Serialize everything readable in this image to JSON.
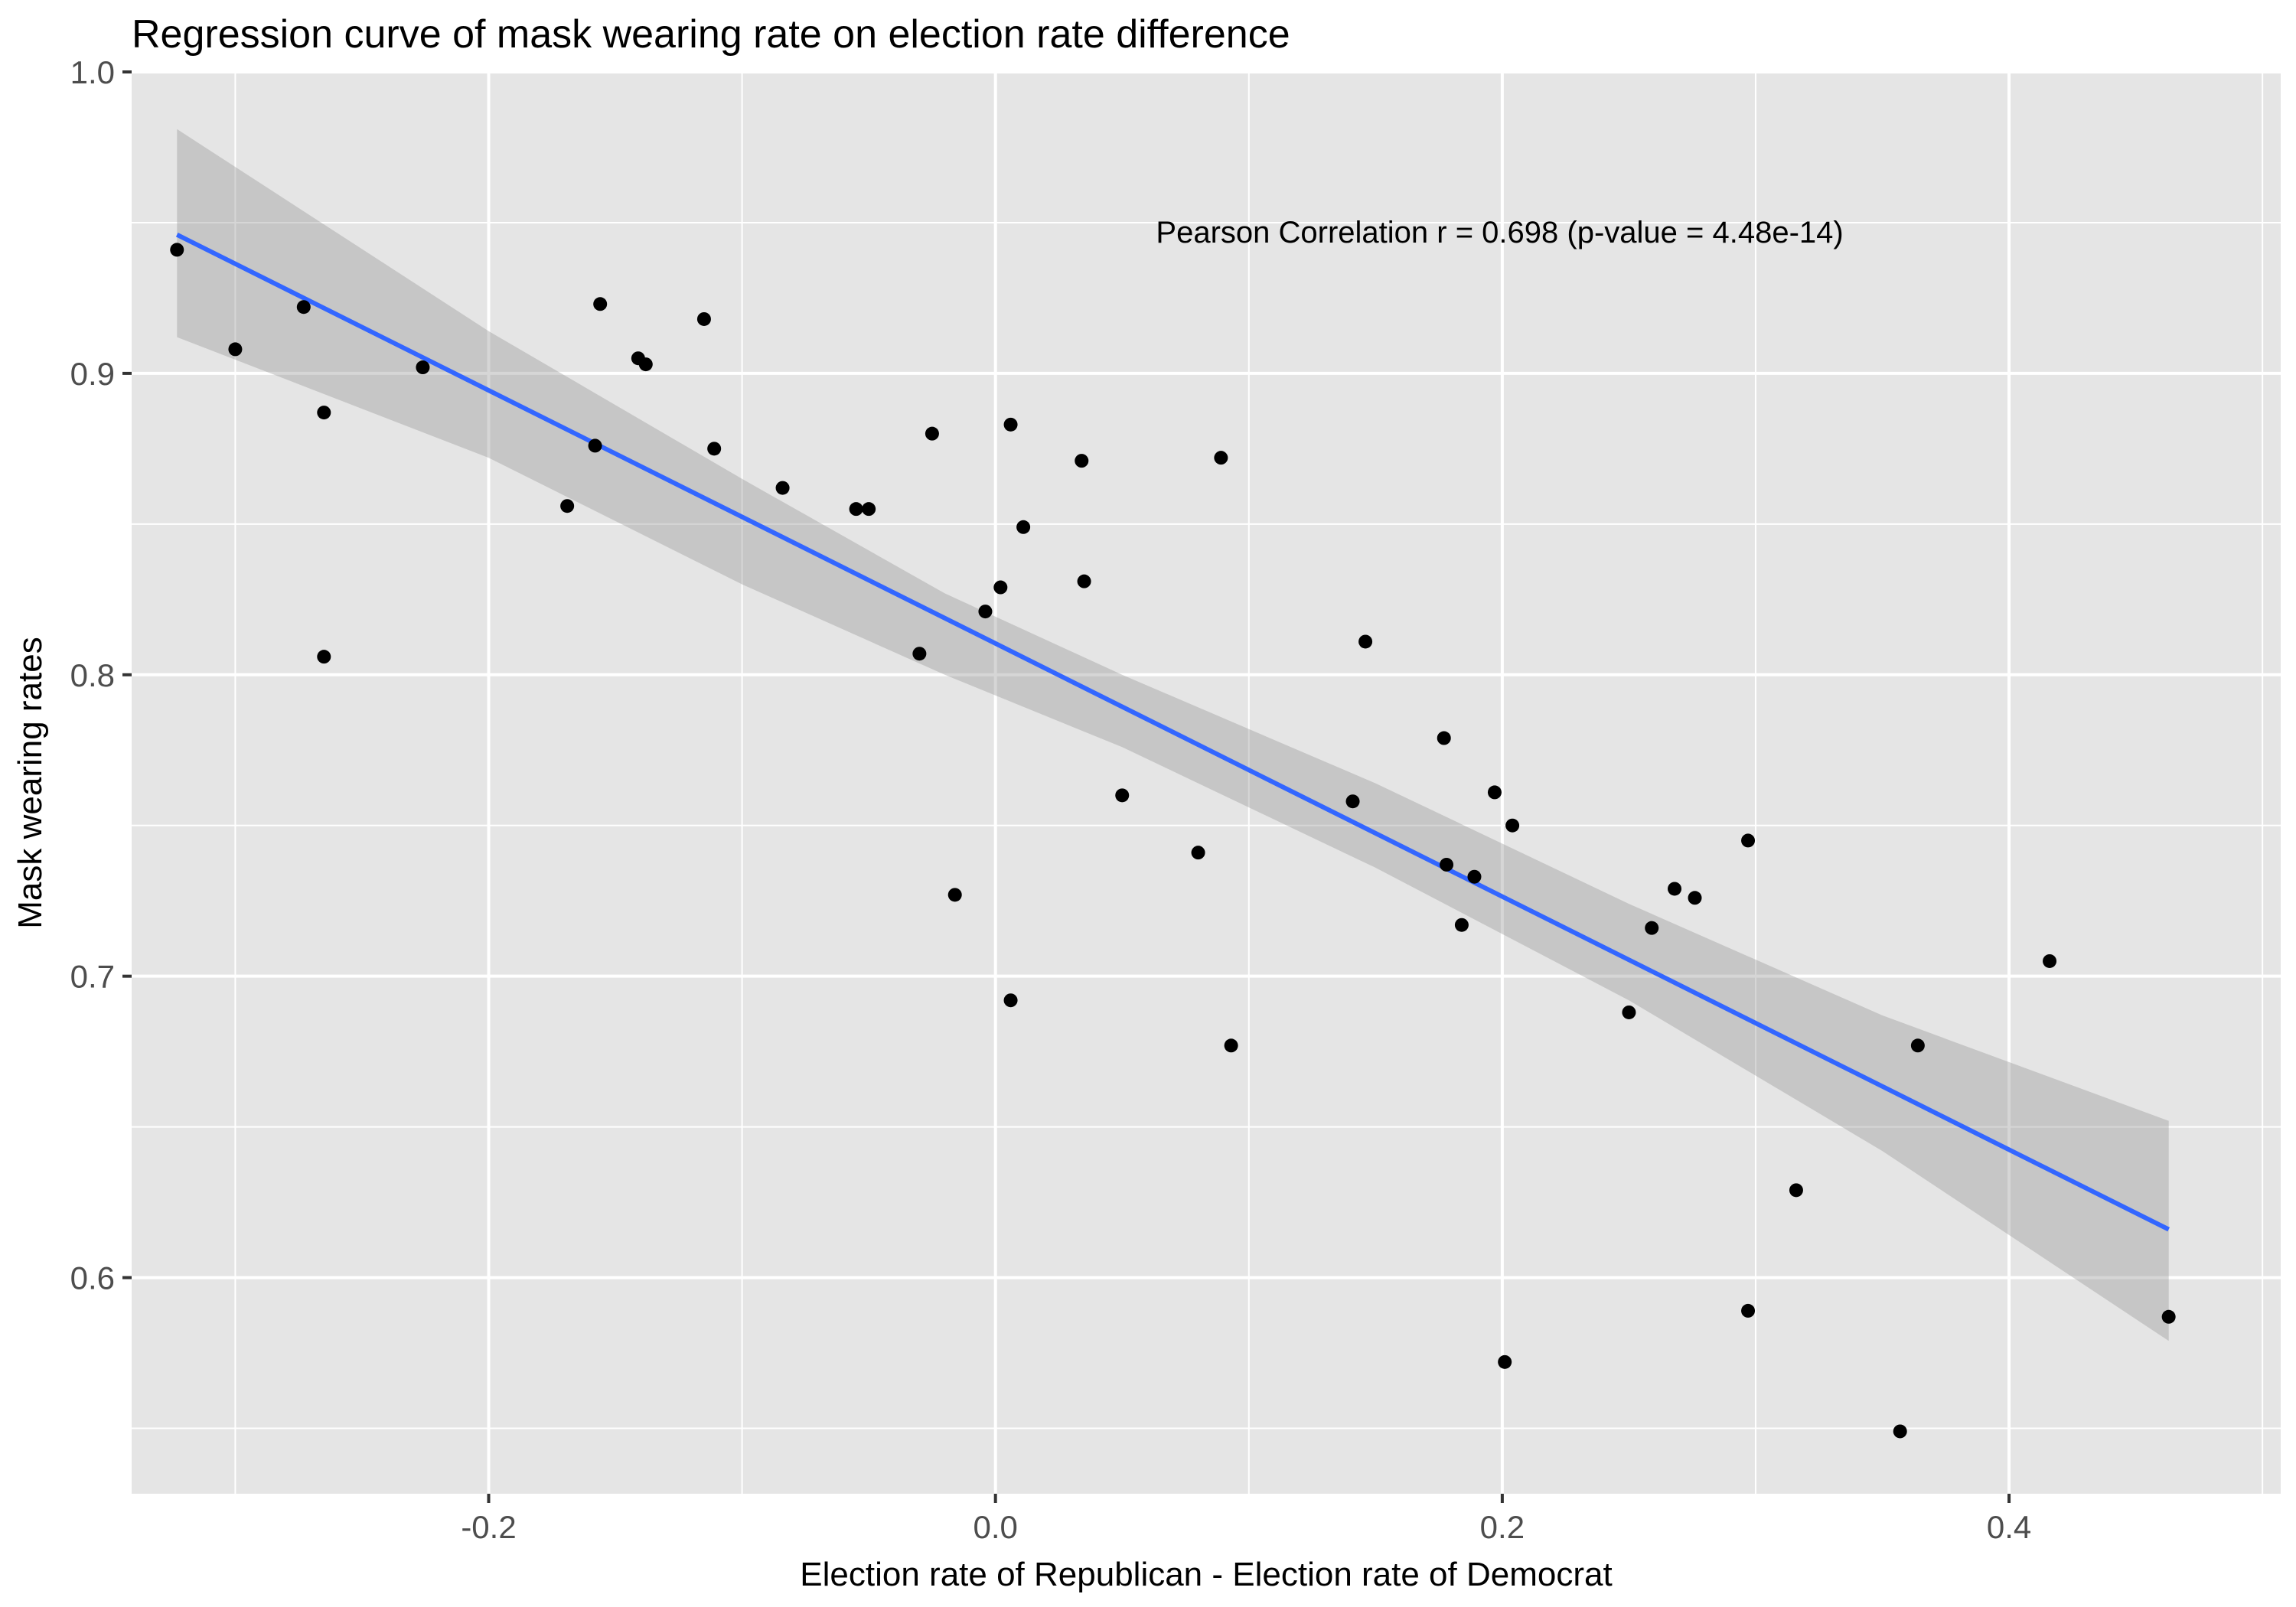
{
  "chart_data": {
    "type": "scatter",
    "title": "Regression curve of mask wearing rate on election rate difference",
    "xlabel": "Election rate of Republican - Election rate of Democrat",
    "ylabel": "Mask wearing rates",
    "xlim": [
      -0.3409,
      0.5072
    ],
    "ylim": [
      0.5283,
      1.0
    ],
    "x_ticks": [
      -0.2,
      0.0,
      0.2,
      0.4
    ],
    "x_tick_labels": [
      "-0.2",
      "0.0",
      "0.2",
      "0.4"
    ],
    "y_ticks": [
      0.6,
      0.7,
      0.8,
      0.9,
      1.0
    ],
    "y_tick_labels": [
      "0.6",
      "0.7",
      "0.8",
      "0.9",
      "1.0"
    ],
    "annotation": "Pearson Correlation r = 0.698 (p-value = 4.48e-14)",
    "annotation_pos": {
      "x": 0.199,
      "y": 0.947
    },
    "grid": true,
    "points": [
      {
        "x": -0.323,
        "y": 0.941
      },
      {
        "x": -0.3,
        "y": 0.908
      },
      {
        "x": -0.273,
        "y": 0.922
      },
      {
        "x": -0.265,
        "y": 0.887
      },
      {
        "x": -0.265,
        "y": 0.806
      },
      {
        "x": -0.226,
        "y": 0.902
      },
      {
        "x": -0.169,
        "y": 0.856
      },
      {
        "x": -0.158,
        "y": 0.876
      },
      {
        "x": -0.156,
        "y": 0.923
      },
      {
        "x": -0.141,
        "y": 0.905
      },
      {
        "x": -0.138,
        "y": 0.903
      },
      {
        "x": -0.115,
        "y": 0.918
      },
      {
        "x": -0.111,
        "y": 0.875
      },
      {
        "x": -0.084,
        "y": 0.862
      },
      {
        "x": -0.055,
        "y": 0.855
      },
      {
        "x": -0.05,
        "y": 0.855
      },
      {
        "x": -0.03,
        "y": 0.807
      },
      {
        "x": -0.025,
        "y": 0.88
      },
      {
        "x": -0.016,
        "y": 0.727
      },
      {
        "x": -0.004,
        "y": 0.821
      },
      {
        "x": 0.002,
        "y": 0.829
      },
      {
        "x": 0.006,
        "y": 0.883
      },
      {
        "x": 0.006,
        "y": 0.692
      },
      {
        "x": 0.011,
        "y": 0.849
      },
      {
        "x": 0.034,
        "y": 0.871
      },
      {
        "x": 0.035,
        "y": 0.831
      },
      {
        "x": 0.05,
        "y": 0.76
      },
      {
        "x": 0.08,
        "y": 0.741
      },
      {
        "x": 0.089,
        "y": 0.872
      },
      {
        "x": 0.093,
        "y": 0.677
      },
      {
        "x": 0.141,
        "y": 0.758
      },
      {
        "x": 0.146,
        "y": 0.811
      },
      {
        "x": 0.177,
        "y": 0.779
      },
      {
        "x": 0.178,
        "y": 0.737
      },
      {
        "x": 0.184,
        "y": 0.717
      },
      {
        "x": 0.189,
        "y": 0.733
      },
      {
        "x": 0.197,
        "y": 0.761
      },
      {
        "x": 0.201,
        "y": 0.572
      },
      {
        "x": 0.204,
        "y": 0.75
      },
      {
        "x": 0.25,
        "y": 0.688
      },
      {
        "x": 0.259,
        "y": 0.716
      },
      {
        "x": 0.268,
        "y": 0.729
      },
      {
        "x": 0.276,
        "y": 0.726
      },
      {
        "x": 0.297,
        "y": 0.745
      },
      {
        "x": 0.297,
        "y": 0.589
      },
      {
        "x": 0.316,
        "y": 0.629
      },
      {
        "x": 0.357,
        "y": 0.549
      },
      {
        "x": 0.364,
        "y": 0.677
      },
      {
        "x": 0.416,
        "y": 0.705
      },
      {
        "x": 0.463,
        "y": 0.587
      }
    ],
    "regression": {
      "line": [
        {
          "x": -0.323,
          "y": 0.946
        },
        {
          "x": 0.463,
          "y": 0.616
        }
      ],
      "band_upper": [
        {
          "x": -0.323,
          "y": 0.981
        },
        {
          "x": -0.2,
          "y": 0.914
        },
        {
          "x": -0.1,
          "y": 0.865
        },
        {
          "x": -0.02,
          "y": 0.827
        },
        {
          "x": 0.05,
          "y": 0.8
        },
        {
          "x": 0.15,
          "y": 0.764
        },
        {
          "x": 0.25,
          "y": 0.724
        },
        {
          "x": 0.35,
          "y": 0.687
        },
        {
          "x": 0.463,
          "y": 0.652
        }
      ],
      "band_lower": [
        {
          "x": 0.463,
          "y": 0.579
        },
        {
          "x": 0.35,
          "y": 0.642
        },
        {
          "x": 0.25,
          "y": 0.692
        },
        {
          "x": 0.15,
          "y": 0.736
        },
        {
          "x": 0.05,
          "y": 0.776
        },
        {
          "x": -0.02,
          "y": 0.8
        },
        {
          "x": -0.1,
          "y": 0.83
        },
        {
          "x": -0.2,
          "y": 0.872
        },
        {
          "x": -0.323,
          "y": 0.912
        }
      ]
    },
    "colors": {
      "panel_bg": "#e5e5e5",
      "grid": "#ffffff",
      "points": "#000000",
      "line": "#3366ff",
      "band": "#999999",
      "band_opacity": 0.4
    }
  }
}
